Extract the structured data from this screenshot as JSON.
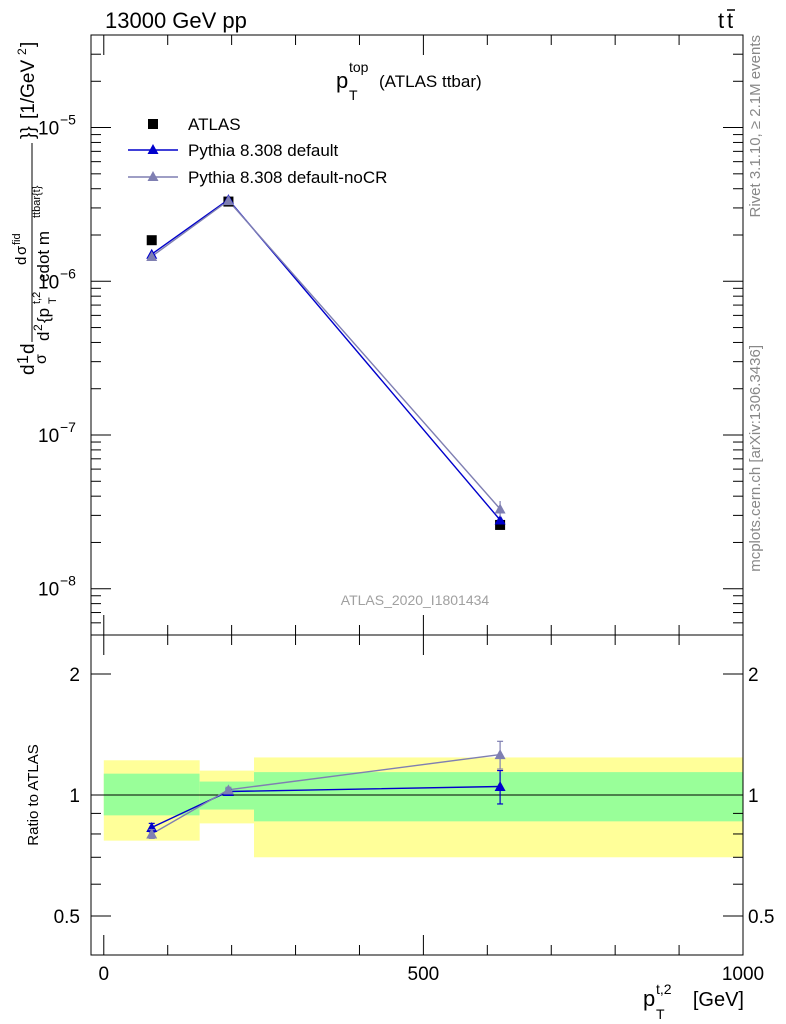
{
  "header": {
    "left": "13000 GeV pp",
    "right_main": "t",
    "right_bar": "t"
  },
  "side_labels": {
    "rivet": "Rivet 3.1.10, ≥ 2.1M events",
    "mcplots": "mcplots.cern.ch [arXiv:1306.3436]"
  },
  "watermark": "ATLAS_2020_I1801434",
  "colors": {
    "data": "#000000",
    "pythia_default": "#0000cc",
    "pythia_nocr": "#7f7fb2",
    "band_inner": "#99ff99",
    "band_outer": "#ffff99"
  },
  "chart_data": [
    {
      "type": "line",
      "title": {
        "main": "p",
        "sup": "top",
        "sub": "T",
        "rest": "(ATLAS ttbar)"
      },
      "ylabel": "d²σ / d²{p_T^{t,2} cdot m^{ttbar}} [1/GeV²]",
      "ylabel_parts": {
        "d1": "d",
        "one": "1",
        "dsig": "d",
        "sigma": "σ",
        "num_d": "d",
        "num_sig": "σ",
        "num_sup": "fid",
        "den_d": "d",
        "den_sup2": "2",
        "den_p": "{p",
        "den_p_sup": "t,2",
        "den_p_sub": "T",
        "den_rest": "cdot m",
        "den_sup_tbar": "ttbar{t}",
        "den_close": "}}",
        "unit_open": "[1/GeV",
        "unit_sup": "2",
        "unit_close": "]"
      },
      "yscale": "log",
      "ylim": [
        5e-09,
        4e-05
      ],
      "xlim": [
        -20,
        1000
      ],
      "y_ticks": [
        {
          "value": 1e-05,
          "base": "10",
          "exp": "−5"
        },
        {
          "value": 1e-06,
          "base": "10",
          "exp": "−6"
        },
        {
          "value": 1e-07,
          "base": "10",
          "exp": "−7"
        },
        {
          "value": 1e-08,
          "base": "10",
          "exp": "−8"
        }
      ],
      "legend_position": "top-left",
      "series": [
        {
          "name": "ATLAS",
          "marker": "square",
          "x": [
            75,
            195,
            620
          ],
          "y": [
            1.85e-06,
            3.3e-06,
            2.6e-08
          ]
        },
        {
          "name": "Pythia 8.308 default",
          "marker": "triangle",
          "x": [
            75,
            195,
            620
          ],
          "y": [
            1.5e-06,
            3.4e-06,
            2.8e-08
          ]
        },
        {
          "name": "Pythia 8.308 default-noCR",
          "marker": "triangle",
          "x": [
            75,
            195,
            620
          ],
          "y": [
            1.45e-06,
            3.35e-06,
            3.3e-08
          ]
        }
      ]
    },
    {
      "type": "line",
      "ylabel": "Ratio to ATLAS",
      "xlabel": {
        "main": "p",
        "sup": "t,2",
        "sub": "T",
        "unit": "[GeV]"
      },
      "yscale": "log",
      "ylim": [
        0.4,
        2.5
      ],
      "xlim": [
        -20,
        1000
      ],
      "x_ticks": [
        0,
        500,
        1000
      ],
      "y_ticks": [
        0.5,
        1,
        2
      ],
      "bands": [
        {
          "x0": 0,
          "x1": 150,
          "inner": [
            0.89,
            1.13
          ],
          "outer": [
            0.77,
            1.22
          ]
        },
        {
          "x0": 150,
          "x1": 235,
          "inner": [
            0.92,
            1.08
          ],
          "outer": [
            0.85,
            1.15
          ]
        },
        {
          "x0": 235,
          "x1": 1000,
          "inner": [
            0.86,
            1.14
          ],
          "outer": [
            0.7,
            1.24
          ]
        }
      ],
      "series": [
        {
          "name": "Pythia 8.308 default",
          "x": [
            75,
            195,
            620
          ],
          "y": [
            0.83,
            1.02,
            1.05
          ],
          "err": [
            0.02,
            0.015,
            0.1
          ]
        },
        {
          "name": "Pythia 8.308 default-noCR",
          "x": [
            75,
            195,
            620
          ],
          "y": [
            0.8,
            1.03,
            1.26
          ],
          "err": [
            0.02,
            0.015,
            0.1
          ]
        }
      ]
    }
  ]
}
